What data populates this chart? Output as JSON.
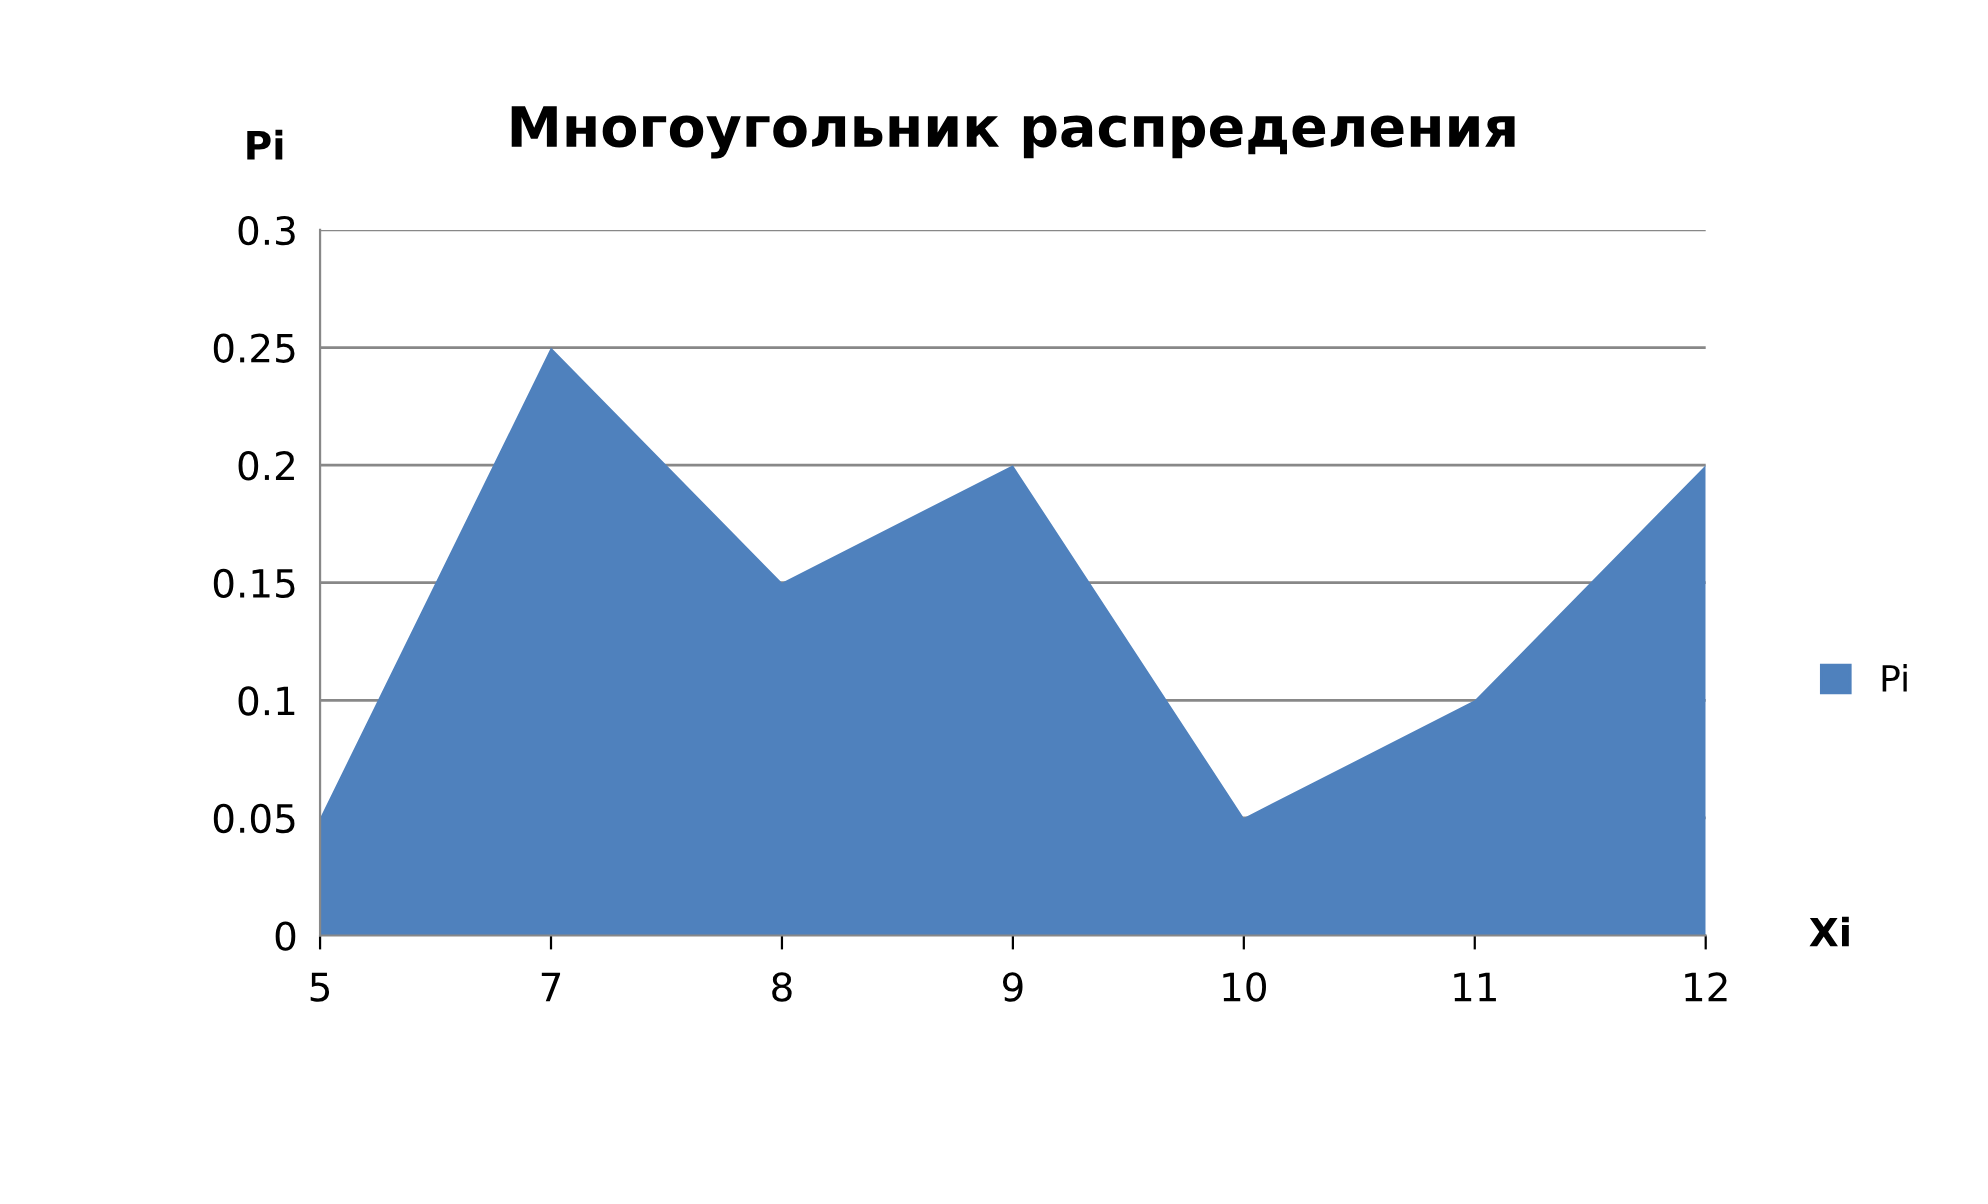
{
  "chart_data": {
    "type": "area",
    "title": "Многоугольник распределения",
    "xlabel": "Xi",
    "ylabel": "Pi",
    "categories": [
      "5",
      "7",
      "8",
      "9",
      "10",
      "11",
      "12"
    ],
    "series": [
      {
        "name": "Pi",
        "color": "#4f81bd",
        "values": [
          0.05,
          0.25,
          0.15,
          0.2,
          0.05,
          0.1,
          0.2
        ]
      }
    ],
    "ylim": [
      0,
      0.3
    ],
    "yticks": [
      0,
      0.05,
      0.1,
      0.15,
      0.2,
      0.25,
      0.3
    ],
    "grid": "y",
    "legend": "right"
  }
}
